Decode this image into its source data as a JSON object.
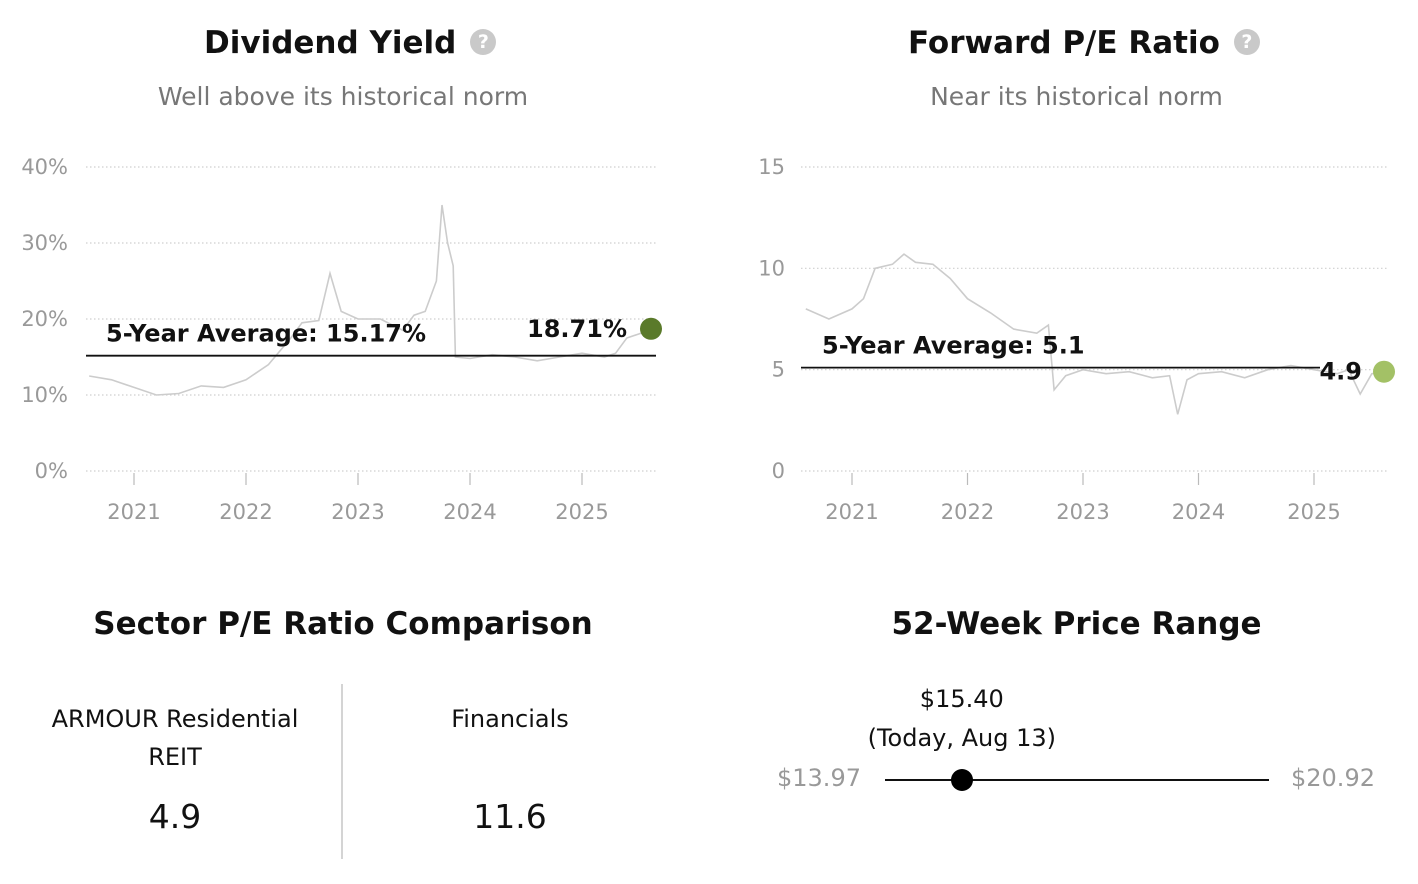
{
  "chart_data": [
    {
      "type": "line",
      "title": "Dividend Yield",
      "subtitle": "Well above its historical norm",
      "y_ticks": [
        "0%",
        "10%",
        "20%",
        "30%",
        "40%"
      ],
      "ylim": [
        0,
        40
      ],
      "x_ticks": [
        "2021",
        "2022",
        "2023",
        "2024",
        "2025"
      ],
      "average": 15.17,
      "average_label": "5-Year Average: 15.17%",
      "current_value": 18.71,
      "current_label": "18.71%",
      "current_color": "#5a7a2a",
      "line_color": "#cccccc",
      "series": [
        {
          "x": [
            2020.6,
            2020.8,
            2021.0,
            2021.2,
            2021.4,
            2021.6,
            2021.8,
            2022.0,
            2022.2,
            2022.4,
            2022.5,
            2022.65,
            2022.75,
            2022.85,
            2023.0,
            2023.2,
            2023.4,
            2023.5,
            2023.6,
            2023.7,
            2023.75,
            2023.8,
            2023.85,
            2023.87,
            2024.0,
            2024.2,
            2024.4,
            2024.6,
            2024.8,
            2025.0,
            2025.2,
            2025.3,
            2025.4,
            2025.5,
            2025.6
          ],
          "y": [
            12.5,
            12.0,
            11.0,
            10.0,
            10.2,
            11.2,
            11.0,
            12.0,
            14.0,
            17.5,
            19.5,
            19.8,
            26.0,
            21.0,
            20.0,
            20.0,
            18.5,
            20.5,
            21.0,
            25.0,
            35.0,
            30.0,
            27.0,
            15.0,
            14.8,
            15.3,
            15.0,
            14.5,
            15.0,
            15.5,
            15.0,
            15.5,
            17.5,
            18.0,
            18.5
          ]
        }
      ]
    },
    {
      "type": "line",
      "title": "Forward P/E Ratio",
      "subtitle": "Near its historical norm",
      "y_ticks": [
        "0",
        "5",
        "10",
        "15"
      ],
      "ylim": [
        0,
        15
      ],
      "x_ticks": [
        "2021",
        "2022",
        "2023",
        "2024",
        "2025"
      ],
      "average": 5.1,
      "average_label": "5-Year Average: 5.1",
      "current_value": 4.9,
      "current_label": "4.9",
      "current_color": "#a3c166",
      "line_color": "#cccccc",
      "series": [
        {
          "x": [
            2020.6,
            2020.8,
            2021.0,
            2021.1,
            2021.2,
            2021.35,
            2021.45,
            2021.55,
            2021.7,
            2021.85,
            2022.0,
            2022.2,
            2022.4,
            2022.6,
            2022.7,
            2022.75,
            2022.85,
            2023.0,
            2023.2,
            2023.4,
            2023.6,
            2023.75,
            2023.82,
            2023.9,
            2024.0,
            2024.2,
            2024.4,
            2024.6,
            2024.8,
            2025.0,
            2025.2,
            2025.3,
            2025.4,
            2025.5,
            2025.6
          ],
          "y": [
            8.0,
            7.5,
            8.0,
            8.5,
            10.0,
            10.2,
            10.7,
            10.3,
            10.2,
            9.5,
            8.5,
            7.8,
            7.0,
            6.8,
            7.2,
            4.0,
            4.7,
            5.0,
            4.8,
            4.9,
            4.6,
            4.7,
            2.8,
            4.5,
            4.8,
            4.9,
            4.6,
            5.0,
            5.2,
            5.0,
            4.8,
            5.0,
            3.8,
            4.8,
            4.9
          ]
        }
      ]
    }
  ],
  "sector": {
    "title": "Sector P/E Ratio Comparison",
    "items": [
      {
        "name": "ARMOUR Residential REIT",
        "value": "4.9"
      },
      {
        "name": "Financials",
        "value": "11.6"
      }
    ]
  },
  "range": {
    "title": "52-Week Price Range",
    "low": "$13.97",
    "high": "$20.92",
    "current_price": "$15.40",
    "current_note": "(Today, Aug 13)",
    "position_fraction": 0.2
  }
}
